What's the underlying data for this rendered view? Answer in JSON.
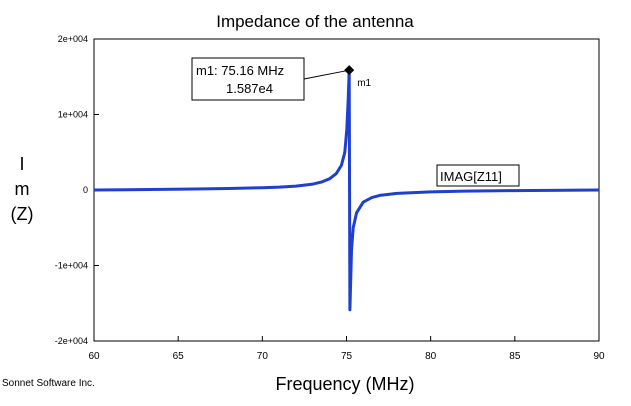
{
  "chart_data": {
    "type": "line",
    "title": "Impedance of the antenna",
    "xlabel": "Frequency (MHz)",
    "ylabel_lines": [
      "I",
      "m",
      "(Z)"
    ],
    "xlim": [
      60,
      90
    ],
    "ylim": [
      -20000,
      20000
    ],
    "x_ticks": [
      60,
      65,
      70,
      75,
      80,
      85,
      90
    ],
    "x_tick_labels": [
      "60",
      "65",
      "70",
      "75",
      "80",
      "85",
      "90"
    ],
    "y_ticks": [
      20000,
      10000,
      0,
      -10000,
      -20000
    ],
    "y_tick_labels": [
      "2e+004",
      "1e+004",
      "0",
      "-1e+004",
      "-2e+004"
    ],
    "grid": false,
    "series": [
      {
        "name": "IMAG[Z11]",
        "color": "#1f3fcf",
        "points": [
          [
            60,
            0
          ],
          [
            62,
            40
          ],
          [
            64,
            80
          ],
          [
            66,
            130
          ],
          [
            68,
            200
          ],
          [
            70,
            300
          ],
          [
            71,
            380
          ],
          [
            72,
            520
          ],
          [
            73,
            780
          ],
          [
            73.5,
            1050
          ],
          [
            74,
            1500
          ],
          [
            74.4,
            2200
          ],
          [
            74.7,
            3300
          ],
          [
            74.9,
            5000
          ],
          [
            75.02,
            8000
          ],
          [
            75.1,
            12000
          ],
          [
            75.16,
            15870
          ],
          [
            75.2,
            -15870
          ],
          [
            75.3,
            -8000
          ],
          [
            75.4,
            -5000
          ],
          [
            75.6,
            -3000
          ],
          [
            76,
            -1600
          ],
          [
            76.5,
            -1000
          ],
          [
            77,
            -700
          ],
          [
            78,
            -450
          ],
          [
            80,
            -250
          ],
          [
            82,
            -150
          ],
          [
            85,
            -80
          ],
          [
            88,
            -30
          ],
          [
            90,
            0
          ]
        ]
      }
    ],
    "marker": {
      "name": "m1",
      "x": 75.16,
      "y": 15870,
      "label_line1": "m1: 75.16 MHz",
      "label_line2": "1.587e4"
    },
    "legend_text": "IMAG[Z11]",
    "footer": "Sonnet Software Inc."
  }
}
